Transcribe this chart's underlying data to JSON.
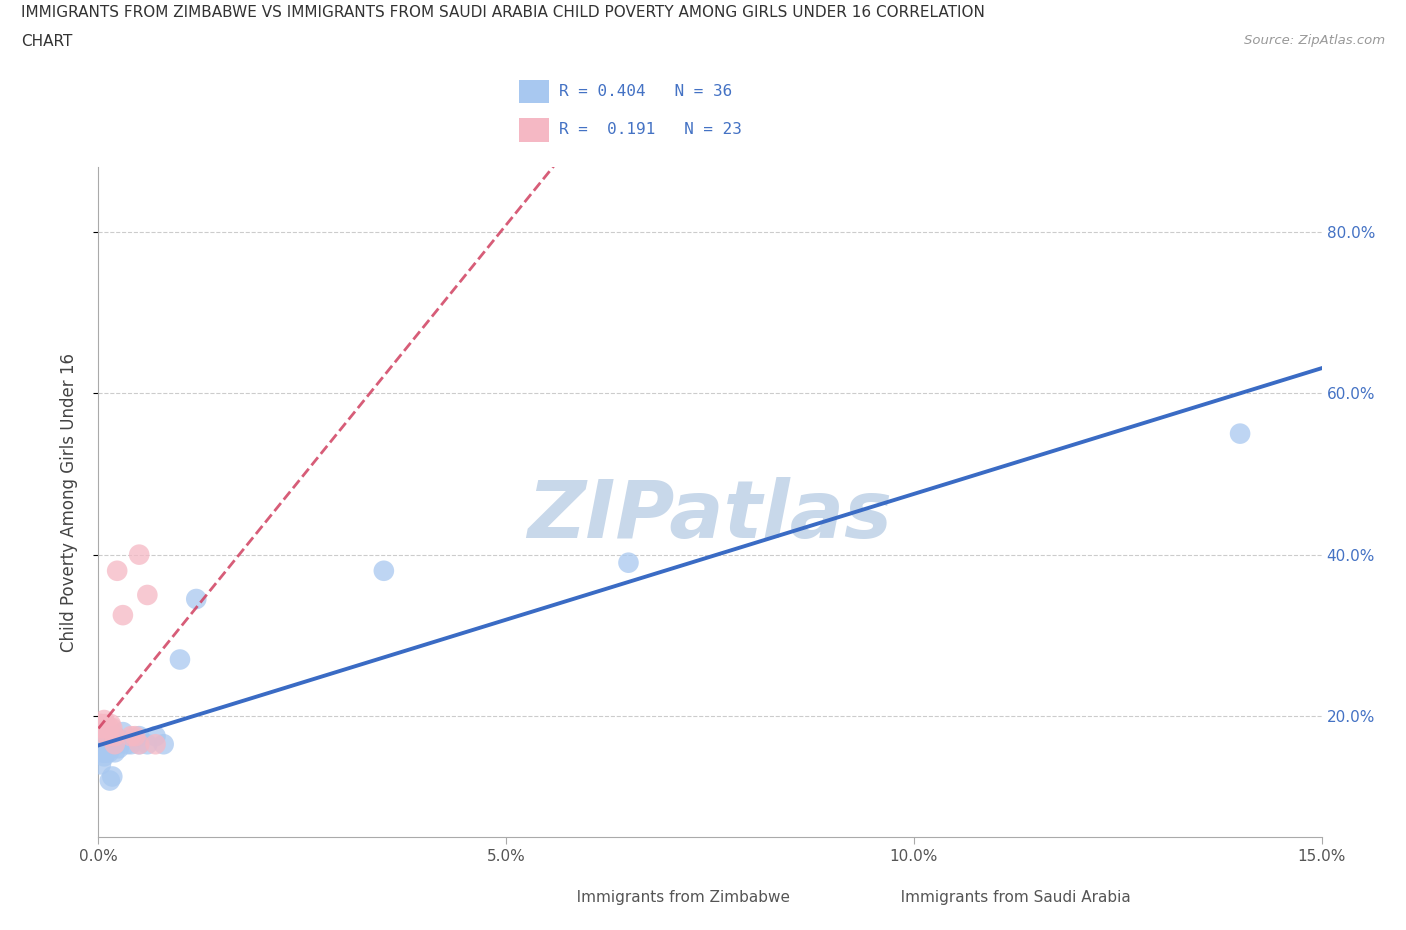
{
  "title_line1": "IMMIGRANTS FROM ZIMBABWE VS IMMIGRANTS FROM SAUDI ARABIA CHILD POVERTY AMONG GIRLS UNDER 16 CORRELATION",
  "title_line2": "CHART",
  "source_text": "Source: ZipAtlas.com",
  "ylabel": "Child Poverty Among Girls Under 16",
  "zimbabwe_color": "#a8c8f0",
  "saudi_color": "#f5b8c4",
  "line_blue": "#3a6bc4",
  "line_red": "#d04060",
  "watermark_color": "#c8d8ea",
  "legend_R_blue": "0.404",
  "legend_N_blue": "36",
  "legend_R_pink": "0.191",
  "legend_N_pink": "23",
  "zim_x": [
    0.0002,
    0.0003,
    0.0004,
    0.0005,
    0.0006,
    0.0007,
    0.0008,
    0.0009,
    0.001,
    0.001,
    0.0012,
    0.0013,
    0.0014,
    0.0015,
    0.0016,
    0.0017,
    0.002,
    0.002,
    0.002,
    0.0022,
    0.0023,
    0.0025,
    0.003,
    0.003,
    0.0035,
    0.004,
    0.005,
    0.005,
    0.006,
    0.007,
    0.008,
    0.01,
    0.012,
    0.035,
    0.065,
    0.14
  ],
  "zim_y": [
    0.175,
    0.14,
    0.16,
    0.155,
    0.155,
    0.15,
    0.155,
    0.165,
    0.165,
    0.155,
    0.165,
    0.155,
    0.12,
    0.17,
    0.165,
    0.125,
    0.17,
    0.175,
    0.155,
    0.165,
    0.17,
    0.16,
    0.18,
    0.17,
    0.165,
    0.165,
    0.175,
    0.165,
    0.165,
    0.175,
    0.165,
    0.27,
    0.345,
    0.38,
    0.39,
    0.55
  ],
  "sau_x": [
    0.0002,
    0.0003,
    0.0004,
    0.0005,
    0.0006,
    0.0007,
    0.0008,
    0.001,
    0.001,
    0.0012,
    0.0014,
    0.0015,
    0.0017,
    0.002,
    0.002,
    0.0023,
    0.003,
    0.004,
    0.0045,
    0.005,
    0.005,
    0.006,
    0.007
  ],
  "sau_y": [
    0.19,
    0.19,
    0.19,
    0.185,
    0.185,
    0.195,
    0.19,
    0.175,
    0.185,
    0.175,
    0.185,
    0.19,
    0.185,
    0.165,
    0.175,
    0.38,
    0.325,
    0.175,
    0.175,
    0.4,
    0.165,
    0.35,
    0.165
  ],
  "ytick_right": [
    "20.0%",
    "40.0%",
    "60.0%",
    "80.0%"
  ],
  "ytick_vals": [
    0.2,
    0.4,
    0.6,
    0.8
  ],
  "xlim": [
    0.0,
    0.15
  ],
  "ylim": [
    0.05,
    0.88
  ],
  "xtick_vals": [
    0.0,
    0.05,
    0.1,
    0.15
  ],
  "xtick_labels": [
    "0.0%",
    "5.0%",
    "10.0%",
    "15.0%"
  ]
}
